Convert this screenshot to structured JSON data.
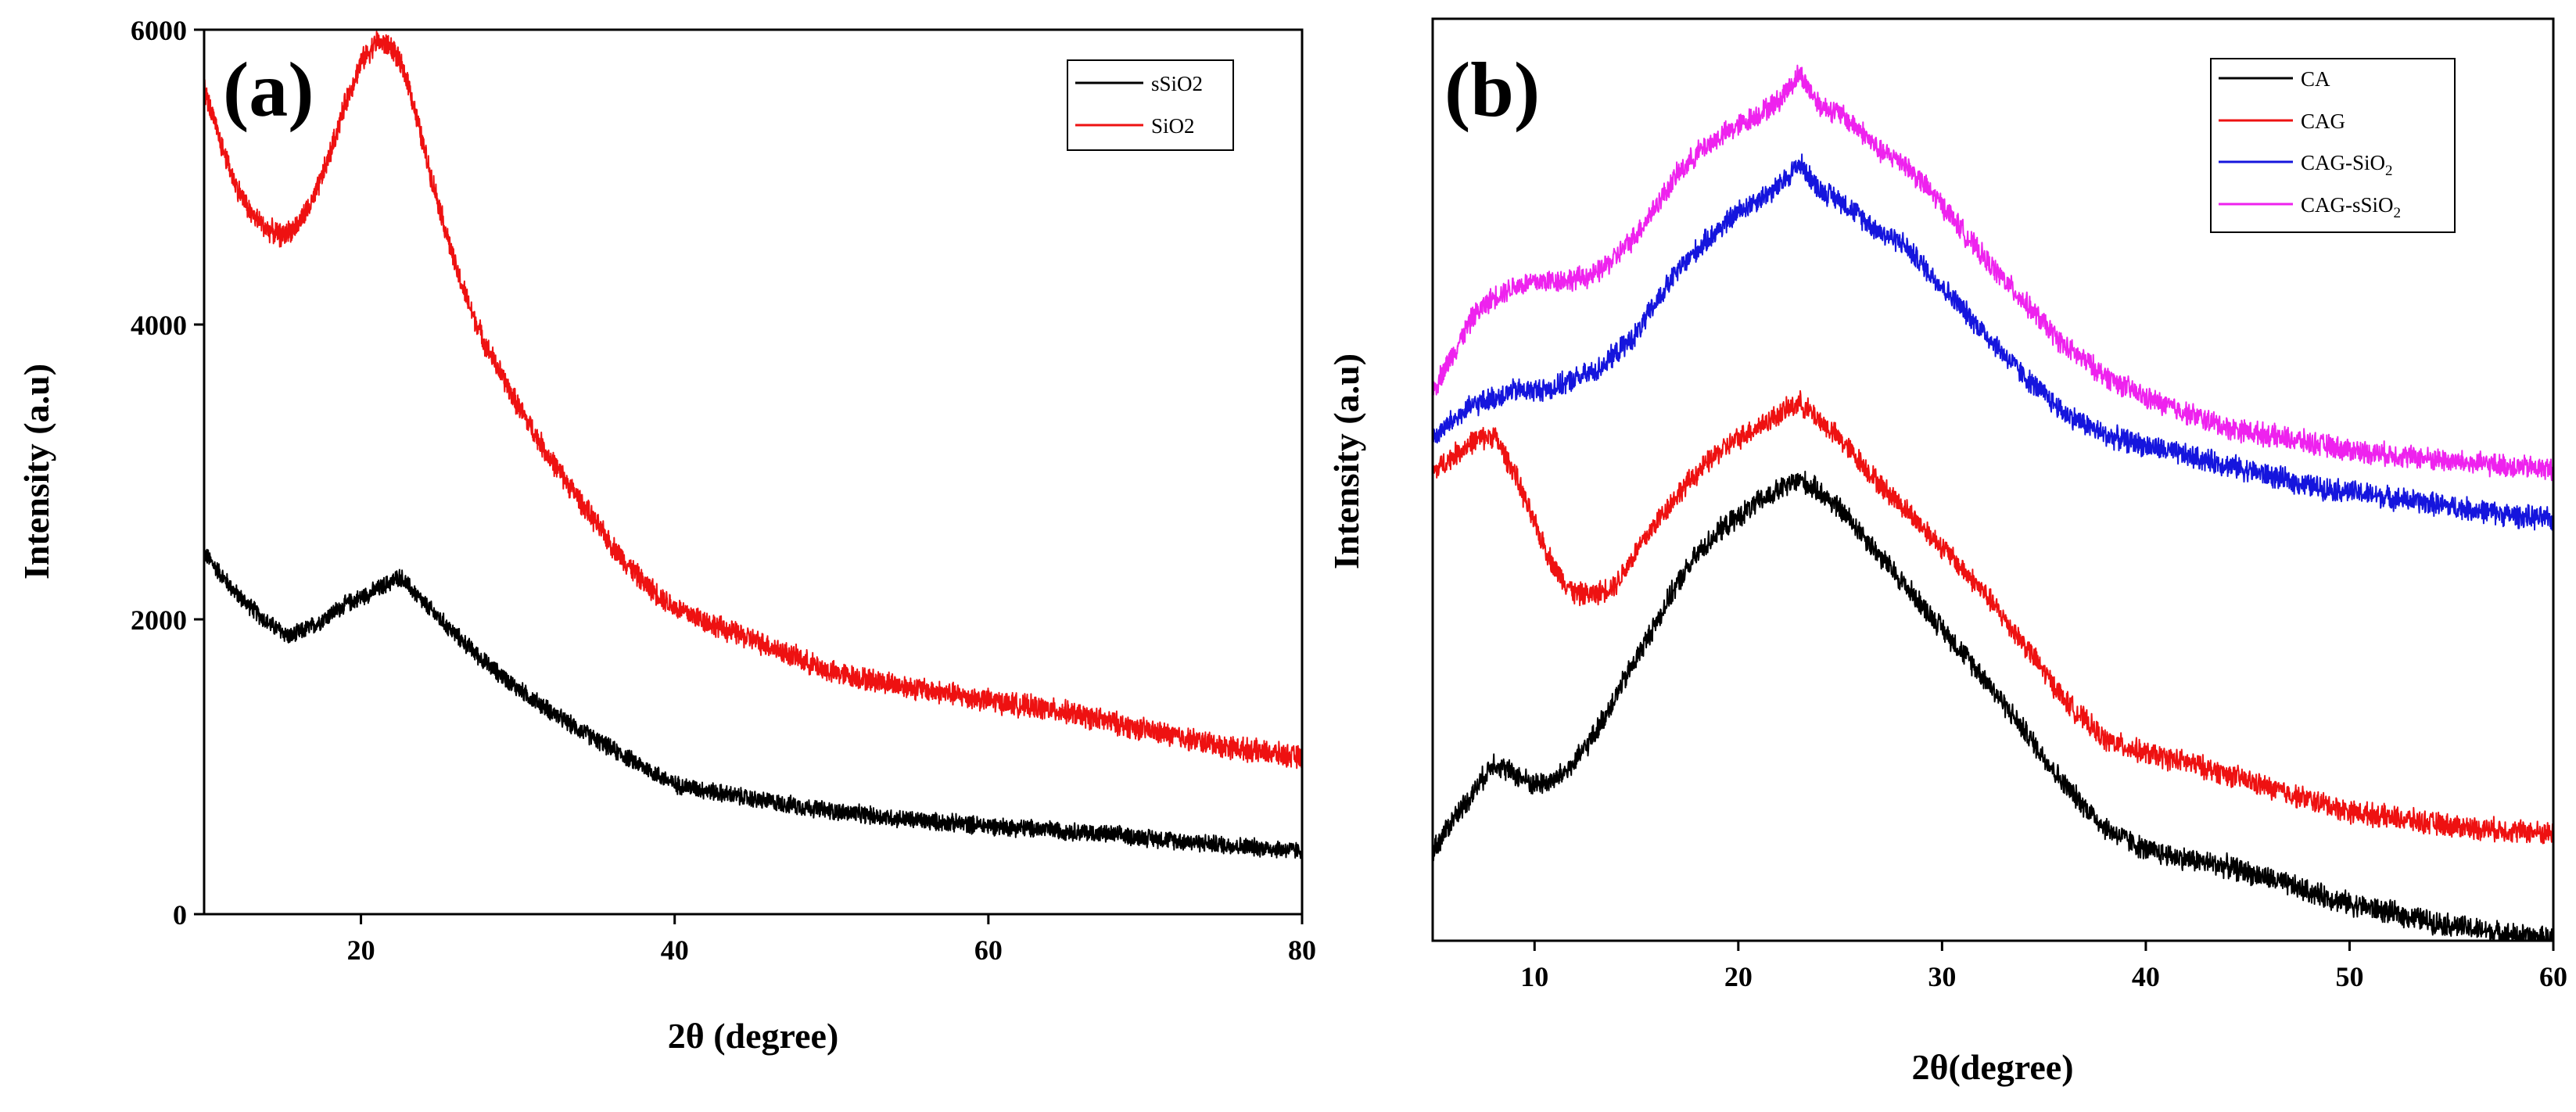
{
  "chart_data": [
    {
      "type": "line",
      "panel_label": "(a)",
      "xlabel": "2θ (degree)",
      "ylabel": "Intensity (a.u)",
      "xlim": [
        10,
        80
      ],
      "ylim": [
        0,
        6000
      ],
      "xticks": [
        20,
        40,
        60,
        80
      ],
      "xtick_labels": [
        "20",
        "40",
        "60",
        "80"
      ],
      "yticks": [
        0,
        2000,
        4000,
        6000
      ],
      "ytick_labels": [
        "0",
        "2000",
        "4000",
        "6000"
      ],
      "show_ytick_labels": true,
      "grid": false,
      "legend_position": "top-right",
      "series": [
        {
          "name": "sSiO2",
          "legend_text": "sSiO2",
          "color": "#000000",
          "noise": 70,
          "x": [
            10,
            12,
            14,
            15.5,
            17,
            19,
            21,
            22.5,
            24,
            26,
            28,
            30,
            33,
            36,
            40,
            45,
            50,
            55,
            60,
            65,
            70,
            75,
            80
          ],
          "y": [
            2450,
            2180,
            1980,
            1880,
            1960,
            2100,
            2200,
            2290,
            2110,
            1900,
            1700,
            1530,
            1310,
            1120,
            880,
            780,
            700,
            640,
            600,
            565,
            520,
            470,
            430
          ]
        },
        {
          "name": "SiO2",
          "legend_text": "SiO2",
          "color": "#ee1111",
          "noise": 90,
          "x": [
            10,
            11,
            12,
            13,
            14,
            15,
            16,
            17,
            18,
            19,
            20,
            21,
            22,
            23,
            24,
            25,
            26,
            27,
            28,
            30,
            32,
            34,
            36,
            38,
            40,
            43,
            46,
            50,
            55,
            60,
            65,
            70,
            75,
            80
          ],
          "y": [
            5600,
            5250,
            4950,
            4750,
            4650,
            4600,
            4680,
            4850,
            5150,
            5500,
            5780,
            5920,
            5880,
            5650,
            5200,
            4800,
            4400,
            4100,
            3850,
            3450,
            3100,
            2800,
            2500,
            2250,
            2080,
            1940,
            1820,
            1640,
            1540,
            1450,
            1370,
            1250,
            1140,
            1060
          ]
        }
      ]
    },
    {
      "type": "line",
      "panel_label": "(b)",
      "xlabel": "2θ(degree)",
      "ylabel": "Intensity (a.u)",
      "xlim": [
        5,
        60
      ],
      "ylim": [
        0,
        6200
      ],
      "xticks": [
        10,
        20,
        30,
        40,
        50,
        60
      ],
      "xtick_labels": [
        "10",
        "20",
        "30",
        "40",
        "50",
        "60"
      ],
      "yticks": [],
      "ytick_labels": [],
      "show_ytick_labels": false,
      "grid": false,
      "legend_position": "top-right",
      "series": [
        {
          "name": "CA",
          "legend_text": "CA",
          "legend_subscript": "",
          "color": "#000000",
          "noise": 90,
          "x": [
            5,
            6,
            7,
            8,
            9,
            10,
            11,
            12,
            13,
            14,
            15,
            16,
            17,
            18,
            19,
            20,
            21,
            22,
            23,
            24,
            25,
            26,
            27,
            28,
            30,
            32,
            34,
            36,
            38,
            40,
            42,
            44,
            46,
            48,
            50,
            52,
            54,
            56,
            58,
            60
          ],
          "y": [
            600,
            820,
            1000,
            1200,
            1120,
            1050,
            1080,
            1200,
            1400,
            1650,
            1900,
            2150,
            2400,
            2600,
            2750,
            2850,
            2950,
            3030,
            3100,
            3020,
            2900,
            2750,
            2580,
            2420,
            2100,
            1780,
            1420,
            1050,
            760,
            610,
            550,
            500,
            420,
            330,
            250,
            190,
            130,
            80,
            40,
            10
          ]
        },
        {
          "name": "CAG",
          "legend_text": "CAG",
          "legend_subscript": "",
          "color": "#ee1111",
          "noise": 90,
          "x": [
            5,
            6,
            7,
            8,
            9,
            10,
            11,
            12,
            13,
            14,
            15,
            16,
            17,
            18,
            19,
            20,
            21,
            22,
            23,
            24,
            25,
            26,
            27,
            28,
            30,
            32,
            34,
            36,
            38,
            40,
            42,
            44,
            46,
            48,
            50,
            52,
            54,
            56,
            58,
            60
          ],
          "y": [
            3150,
            3260,
            3360,
            3400,
            3150,
            2800,
            2500,
            2330,
            2330,
            2400,
            2620,
            2820,
            3000,
            3150,
            3280,
            3380,
            3460,
            3540,
            3620,
            3500,
            3370,
            3220,
            3060,
            2930,
            2650,
            2350,
            2000,
            1620,
            1350,
            1260,
            1200,
            1120,
            1030,
            950,
            870,
            830,
            790,
            760,
            740,
            720
          ]
        },
        {
          "name": "CAG-SiO2",
          "legend_text": "CAG-SiO",
          "legend_subscript": "2",
          "color": "#1515dd",
          "noise": 90,
          "x": [
            5,
            6,
            7,
            8,
            9,
            10,
            11,
            12,
            13,
            14,
            15,
            16,
            17,
            18,
            19,
            20,
            21,
            22,
            23,
            24,
            25,
            26,
            27,
            28,
            30,
            32,
            34,
            36,
            38,
            40,
            42,
            44,
            46,
            48,
            50,
            52,
            54,
            56,
            58,
            60
          ],
          "y": [
            3380,
            3500,
            3600,
            3650,
            3700,
            3700,
            3720,
            3780,
            3830,
            3950,
            4080,
            4300,
            4500,
            4650,
            4780,
            4900,
            4990,
            5070,
            5230,
            5050,
            4980,
            4870,
            4760,
            4700,
            4400,
            4100,
            3800,
            3550,
            3400,
            3330,
            3260,
            3200,
            3130,
            3060,
            3020,
            2980,
            2940,
            2900,
            2860,
            2830
          ]
        },
        {
          "name": "CAG-sSiO2",
          "legend_text": "CAG-sSiO",
          "legend_subscript": "2",
          "color": "#ee22ee",
          "noise": 90,
          "x": [
            5,
            6,
            7,
            8,
            9,
            10,
            11,
            12,
            13,
            14,
            15,
            16,
            17,
            18,
            19,
            20,
            21,
            22,
            23,
            24,
            25,
            26,
            27,
            28,
            30,
            32,
            34,
            36,
            38,
            40,
            42,
            44,
            46,
            48,
            50,
            52,
            54,
            56,
            58,
            60
          ],
          "y": [
            3700,
            3950,
            4200,
            4330,
            4400,
            4430,
            4440,
            4450,
            4480,
            4600,
            4750,
            4950,
            5150,
            5300,
            5400,
            5480,
            5560,
            5650,
            5830,
            5620,
            5560,
            5450,
            5300,
            5250,
            4950,
            4600,
            4300,
            4000,
            3800,
            3650,
            3550,
            3450,
            3400,
            3350,
            3300,
            3270,
            3240,
            3210,
            3190,
            3170
          ]
        }
      ]
    }
  ]
}
